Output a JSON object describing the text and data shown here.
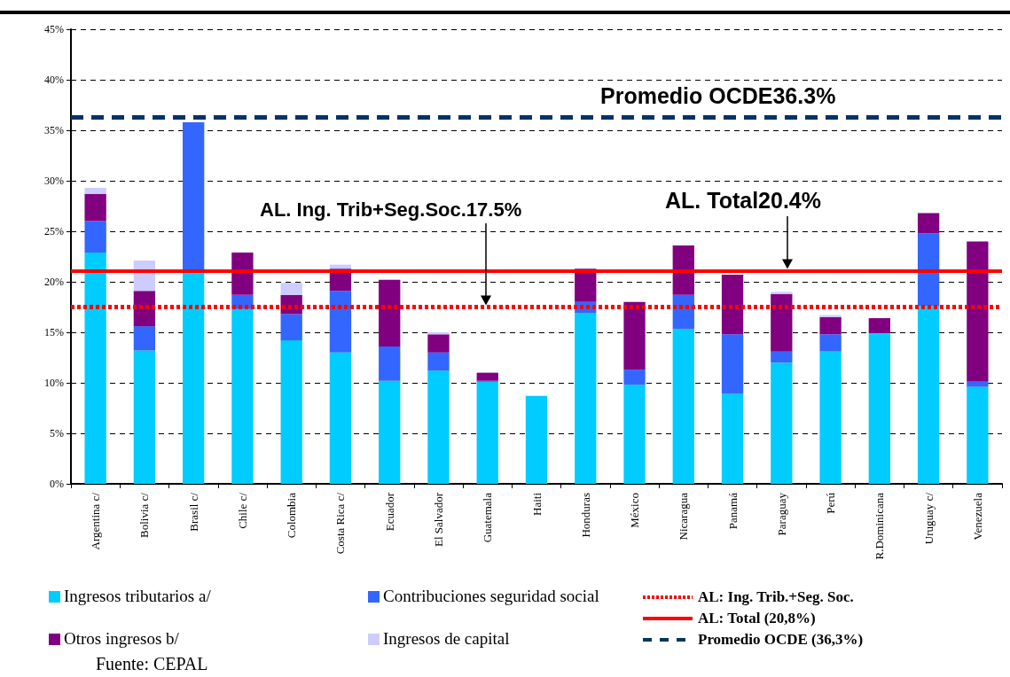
{
  "chart_data": {
    "type": "bar",
    "stacked": true,
    "categories": [
      "Argentina c/",
      "Bolivia c/",
      "Brasil c/",
      "Chile c/",
      "Colombia",
      "Costa Rica c/",
      "Ecuador",
      "El Salvador",
      "Guatemala",
      "Haiti",
      "Honduras",
      "México",
      "Nicaragua",
      "Panamá",
      "Paraguay",
      "Perú",
      "R.Dominicana",
      "Uruguay c/",
      "Venezuela"
    ],
    "series": [
      {
        "name": "Ingresos tributarios a/",
        "color": "#00ccff",
        "values": [
          22.9,
          13.2,
          21.0,
          17.3,
          14.2,
          13.0,
          10.2,
          11.2,
          10.1,
          8.7,
          16.9,
          9.8,
          15.3,
          8.9,
          12.0,
          13.1,
          14.9,
          17.6,
          9.6
        ]
      },
      {
        "name": "Contribuciones seguridad social",
        "color": "#3366ff",
        "values": [
          3.1,
          2.4,
          14.8,
          1.4,
          2.6,
          6.1,
          3.4,
          1.8,
          0.1,
          null,
          1.1,
          1.5,
          3.4,
          5.9,
          1.1,
          1.7,
          null,
          7.2,
          0.5
        ]
      },
      {
        "name": "Otros ingresos b/",
        "color": "#800080",
        "values": [
          2.7,
          3.5,
          null,
          4.2,
          1.9,
          2.2,
          6.6,
          1.8,
          0.8,
          null,
          3.3,
          6.7,
          4.9,
          5.9,
          5.7,
          1.7,
          1.5,
          2.0,
          13.9
        ]
      },
      {
        "name": "Ingresos de capital",
        "color": "#ccccff",
        "values": [
          0.6,
          3.0,
          null,
          null,
          1.2,
          0.4,
          null,
          0.2,
          null,
          null,
          null,
          null,
          null,
          null,
          0.2,
          0.2,
          null,
          null,
          null
        ]
      }
    ],
    "ylim": [
      0,
      45
    ],
    "yticks": [
      {
        "value": 0,
        "label": "0%"
      },
      {
        "value": 5,
        "label": "5%"
      },
      {
        "value": 10,
        "label": "10%"
      },
      {
        "value": 15,
        "label": "15%"
      },
      {
        "value": 20,
        "label": "20%"
      },
      {
        "value": 25,
        "label": "25%"
      },
      {
        "value": 30,
        "label": "30%"
      },
      {
        "value": 35,
        "label": "35%"
      },
      {
        "value": 40,
        "label": "40%"
      },
      {
        "value": 45,
        "label": "45%"
      }
    ],
    "grid": "y",
    "legend": "bottom",
    "ref_lines": [
      {
        "axis": "y",
        "value": 17.5,
        "label": "AL: Ing. Trib.+Seg. Soc.",
        "color": "#ff0000",
        "line_style": "dotted"
      },
      {
        "axis": "y",
        "value": 21.1,
        "label": "AL: Total (20,8%)",
        "color": "#ff0000",
        "line_style": "solid"
      },
      {
        "axis": "y",
        "value": 36.3,
        "label": "Promedio OCDE (36,3%)",
        "color": "#003366",
        "line_style": "dashed"
      }
    ],
    "annotations": [
      "Promedio OCDE36.3%",
      "AL. Ing. Trib+Seg.Soc.17.5%",
      "AL. Total20.4%",
      "Fuente: CEPAL"
    ]
  }
}
